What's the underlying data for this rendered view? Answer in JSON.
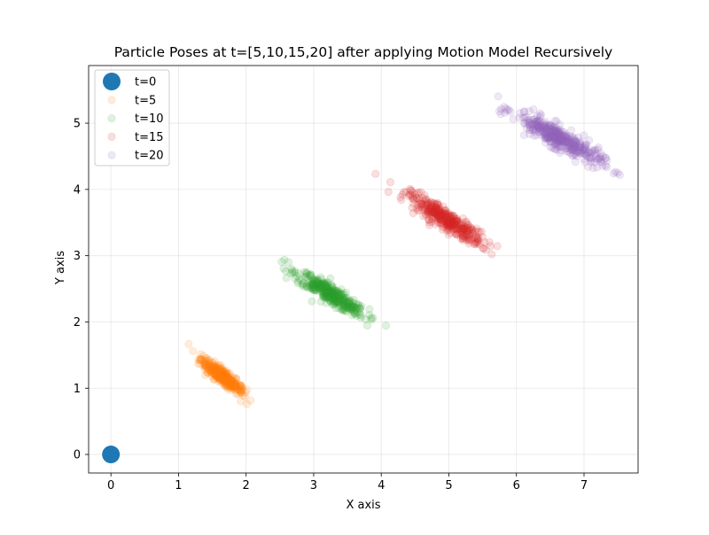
{
  "chart_data": {
    "type": "scatter",
    "title": "Particle Poses at t=[5,10,15,20] after applying Motion Model Recursively",
    "xlabel": "X axis",
    "ylabel": "Y axis",
    "xlim": [
      -0.33,
      7.8
    ],
    "ylim": [
      -0.28,
      5.87
    ],
    "xticks": [
      0,
      1,
      2,
      3,
      4,
      5,
      6,
      7
    ],
    "yticks": [
      0,
      1,
      2,
      3,
      4,
      5
    ],
    "grid": true,
    "legend_position": "top-left",
    "series": [
      {
        "name": "t=0",
        "color": "#1f77b4",
        "alpha": 1.0,
        "marker_size": "large",
        "cloud": {
          "center": [
            0.0,
            0.0
          ],
          "spread_along": 0.0,
          "spread_across": 0.0,
          "angle_deg": 0,
          "n": 1
        }
      },
      {
        "name": "t=5",
        "color": "#ff7f0e",
        "alpha": 0.15,
        "marker_size": "small",
        "cloud": {
          "center": [
            1.65,
            1.18
          ],
          "spread_along": 0.2,
          "spread_across": 0.045,
          "angle_deg": -40,
          "n": 360
        },
        "extent": {
          "x": [
            1.2,
            2.05
          ],
          "y": [
            0.72,
            1.52
          ]
        }
      },
      {
        "name": "t=10",
        "color": "#2ca02c",
        "alpha": 0.15,
        "marker_size": "small",
        "cloud": {
          "center": [
            3.25,
            2.42
          ],
          "spread_along": 0.3,
          "spread_across": 0.06,
          "angle_deg": -33,
          "n": 380
        },
        "extent": {
          "x": [
            2.65,
            3.85
          ],
          "y": [
            1.8,
            2.88
          ]
        }
      },
      {
        "name": "t=15",
        "color": "#d62728",
        "alpha": 0.15,
        "marker_size": "small",
        "cloud": {
          "center": [
            4.95,
            3.55
          ],
          "spread_along": 0.33,
          "spread_across": 0.065,
          "angle_deg": -33,
          "n": 380
        },
        "extent": {
          "x": [
            4.05,
            5.65
          ],
          "y": [
            2.8,
            4.28
          ]
        }
      },
      {
        "name": "t=20",
        "color": "#9467bd",
        "alpha": 0.15,
        "marker_size": "small",
        "cloud": {
          "center": [
            6.62,
            4.78
          ],
          "spread_along": 0.36,
          "spread_across": 0.075,
          "angle_deg": -30,
          "n": 400
        },
        "extent": {
          "x": [
            5.6,
            7.45
          ],
          "y": [
            3.92,
            5.58
          ]
        }
      }
    ]
  }
}
